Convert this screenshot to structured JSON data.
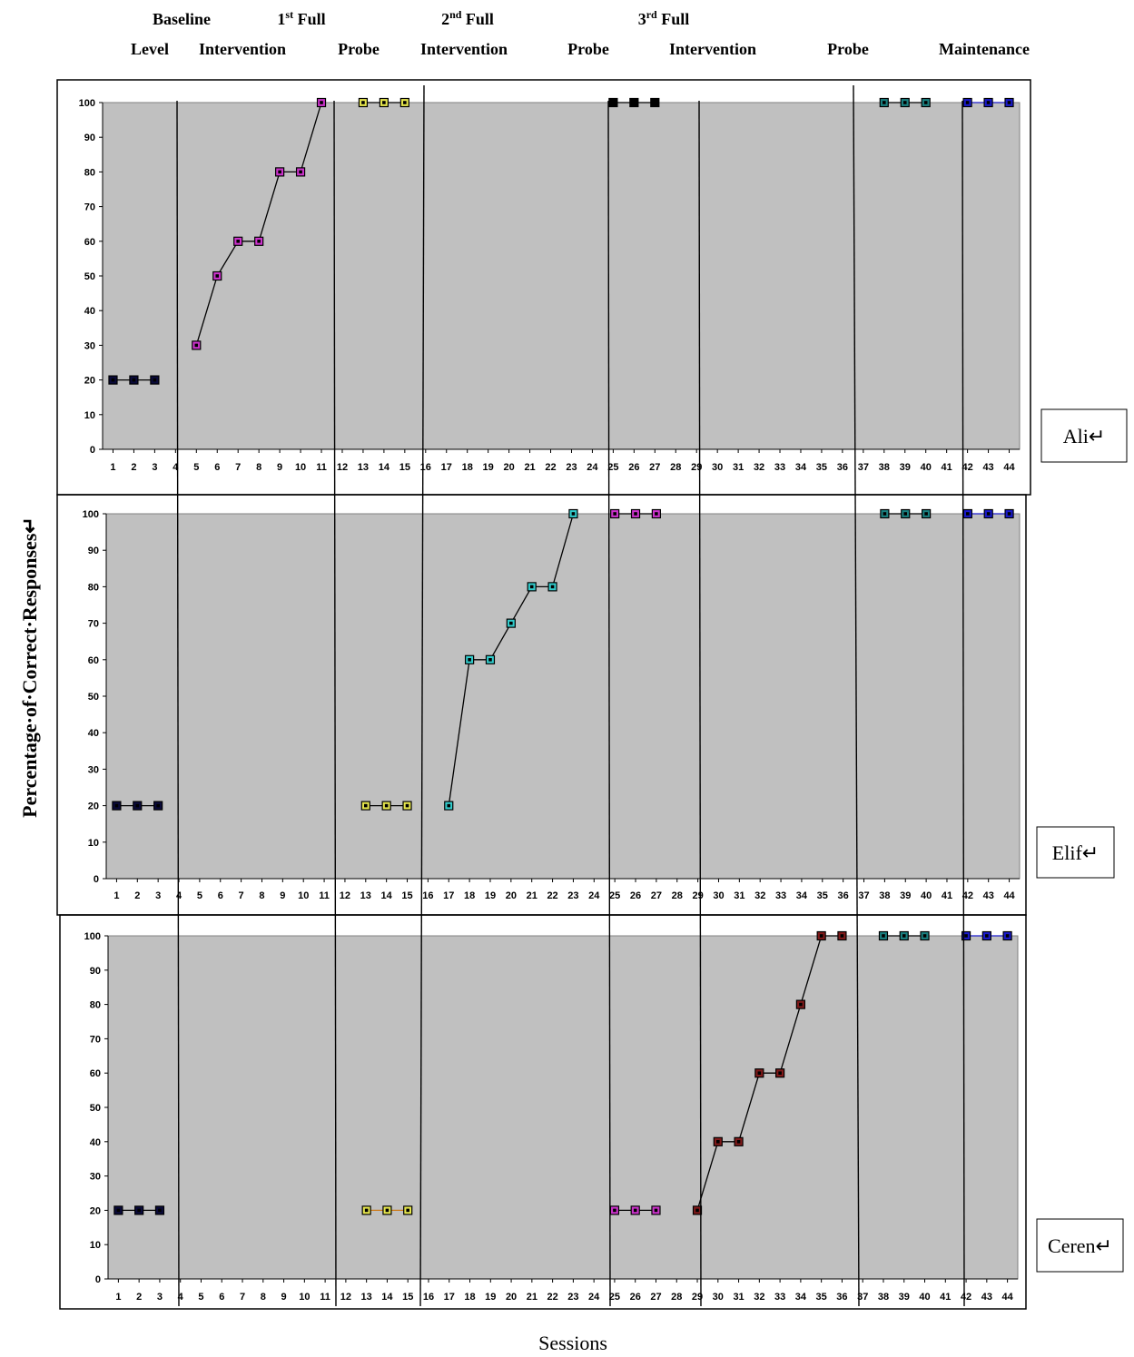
{
  "chart_data": {
    "type": "line",
    "xlabel": "Sessions",
    "ylabel": "Percentage·of·Correct·Responses↵",
    "ylim": [
      0,
      100
    ],
    "y_ticks": [
      0,
      10,
      20,
      30,
      40,
      50,
      60,
      70,
      80,
      90,
      100
    ],
    "x_ticks": [
      1,
      2,
      3,
      4,
      5,
      6,
      7,
      8,
      9,
      10,
      11,
      12,
      13,
      14,
      15,
      16,
      17,
      18,
      19,
      20,
      21,
      22,
      23,
      24,
      25,
      26,
      27,
      28,
      29,
      30,
      31,
      32,
      33,
      34,
      35,
      36,
      37,
      38,
      39,
      40,
      41,
      42,
      43,
      44
    ],
    "phases": [
      {
        "line1": "Baseline",
        "line2": "Level",
        "boundary_after": 4
      },
      {
        "line1": "1",
        "sup": "st",
        "line1_rest": " Full",
        "line2": "Intervention",
        "boundary_after": 11.7
      },
      {
        "line1": "",
        "line2": "Probe",
        "boundary_after": 16.3
      },
      {
        "line1": "2",
        "sup": "nd",
        "line1_rest": " Full",
        "line2": "Intervention",
        "boundary_after": 24.6
      },
      {
        "line1": "",
        "line2": "Probe",
        "boundary_after": 29
      },
      {
        "line1": "3",
        "sup": "rd",
        "line1_rest": " Full",
        "line2": "Intervention",
        "boundary_after": 36.5
      },
      {
        "line1": "",
        "line2": "Probe",
        "boundary_after": 41.6
      },
      {
        "line1": "",
        "line2": "Maintenance"
      }
    ],
    "panels": [
      {
        "participant": "Ali↵",
        "series": [
          {
            "x": [
              1,
              2,
              3
            ],
            "y": [
              20,
              20,
              20
            ],
            "fill": "#0a0a3a",
            "line": "#000000"
          },
          {
            "x": [
              5,
              6,
              7,
              8,
              9,
              10,
              11
            ],
            "y": [
              30,
              50,
              60,
              60,
              80,
              80,
              100
            ],
            "fill": "#cc33cc",
            "line": "#000000"
          },
          {
            "x": [
              13,
              14,
              15
            ],
            "y": [
              100,
              100,
              100
            ],
            "fill": "#e6e64d",
            "line": "#000000"
          },
          {
            "x": [
              25,
              26,
              27
            ],
            "y": [
              100,
              100,
              100
            ],
            "fill": "#000000",
            "line": "#000000"
          },
          {
            "x": [
              38,
              39,
              40
            ],
            "y": [
              100,
              100,
              100
            ],
            "fill": "#1a8080",
            "line": "#000000"
          },
          {
            "x": [
              42,
              43,
              44
            ],
            "y": [
              100,
              100,
              100
            ],
            "fill": "#1a1acc",
            "line": "#1a1acc"
          }
        ]
      },
      {
        "participant": "Elif↵",
        "series": [
          {
            "x": [
              1,
              2,
              3
            ],
            "y": [
              20,
              20,
              20
            ],
            "fill": "#0a0a3a",
            "line": "#000000"
          },
          {
            "x": [
              13,
              14,
              15
            ],
            "y": [
              20,
              20,
              20
            ],
            "fill": "#e6e64d",
            "line": "#000000"
          },
          {
            "x": [
              17,
              18,
              19,
              20,
              21,
              22,
              23
            ],
            "y": [
              20,
              60,
              60,
              70,
              80,
              80,
              100
            ],
            "fill": "#33cccc",
            "line": "#000000"
          },
          {
            "x": [
              25,
              26,
              27
            ],
            "y": [
              100,
              100,
              100
            ],
            "fill": "#cc33cc",
            "line": "#000000"
          },
          {
            "x": [
              38,
              39,
              40
            ],
            "y": [
              100,
              100,
              100
            ],
            "fill": "#1a8080",
            "line": "#000000"
          },
          {
            "x": [
              42,
              43,
              44
            ],
            "y": [
              100,
              100,
              100
            ],
            "fill": "#1a1acc",
            "line": "#1a1acc"
          }
        ]
      },
      {
        "participant": "Ceren↵",
        "series": [
          {
            "x": [
              1,
              2,
              3
            ],
            "y": [
              20,
              20,
              20
            ],
            "fill": "#0a0a3a",
            "line": "#000000"
          },
          {
            "x": [
              13,
              14,
              15
            ],
            "y": [
              20,
              20,
              20
            ],
            "fill": "#e6e64d",
            "line": "#cc7a1a"
          },
          {
            "x": [
              25,
              26,
              27
            ],
            "y": [
              20,
              20,
              20
            ],
            "fill": "#cc33cc",
            "line": "#000000"
          },
          {
            "x": [
              29,
              30,
              31,
              32,
              33,
              34,
              35,
              36
            ],
            "y": [
              20,
              40,
              40,
              60,
              60,
              80,
              100,
              100
            ],
            "fill": "#801a1a",
            "line": "#000000"
          },
          {
            "x": [
              38,
              39,
              40
            ],
            "y": [
              100,
              100,
              100
            ],
            "fill": "#1a8080",
            "line": "#000000"
          },
          {
            "x": [
              42,
              43,
              44
            ],
            "y": [
              100,
              100,
              100
            ],
            "fill": "#1a1acc",
            "line": "#1a1acc"
          }
        ]
      }
    ]
  }
}
